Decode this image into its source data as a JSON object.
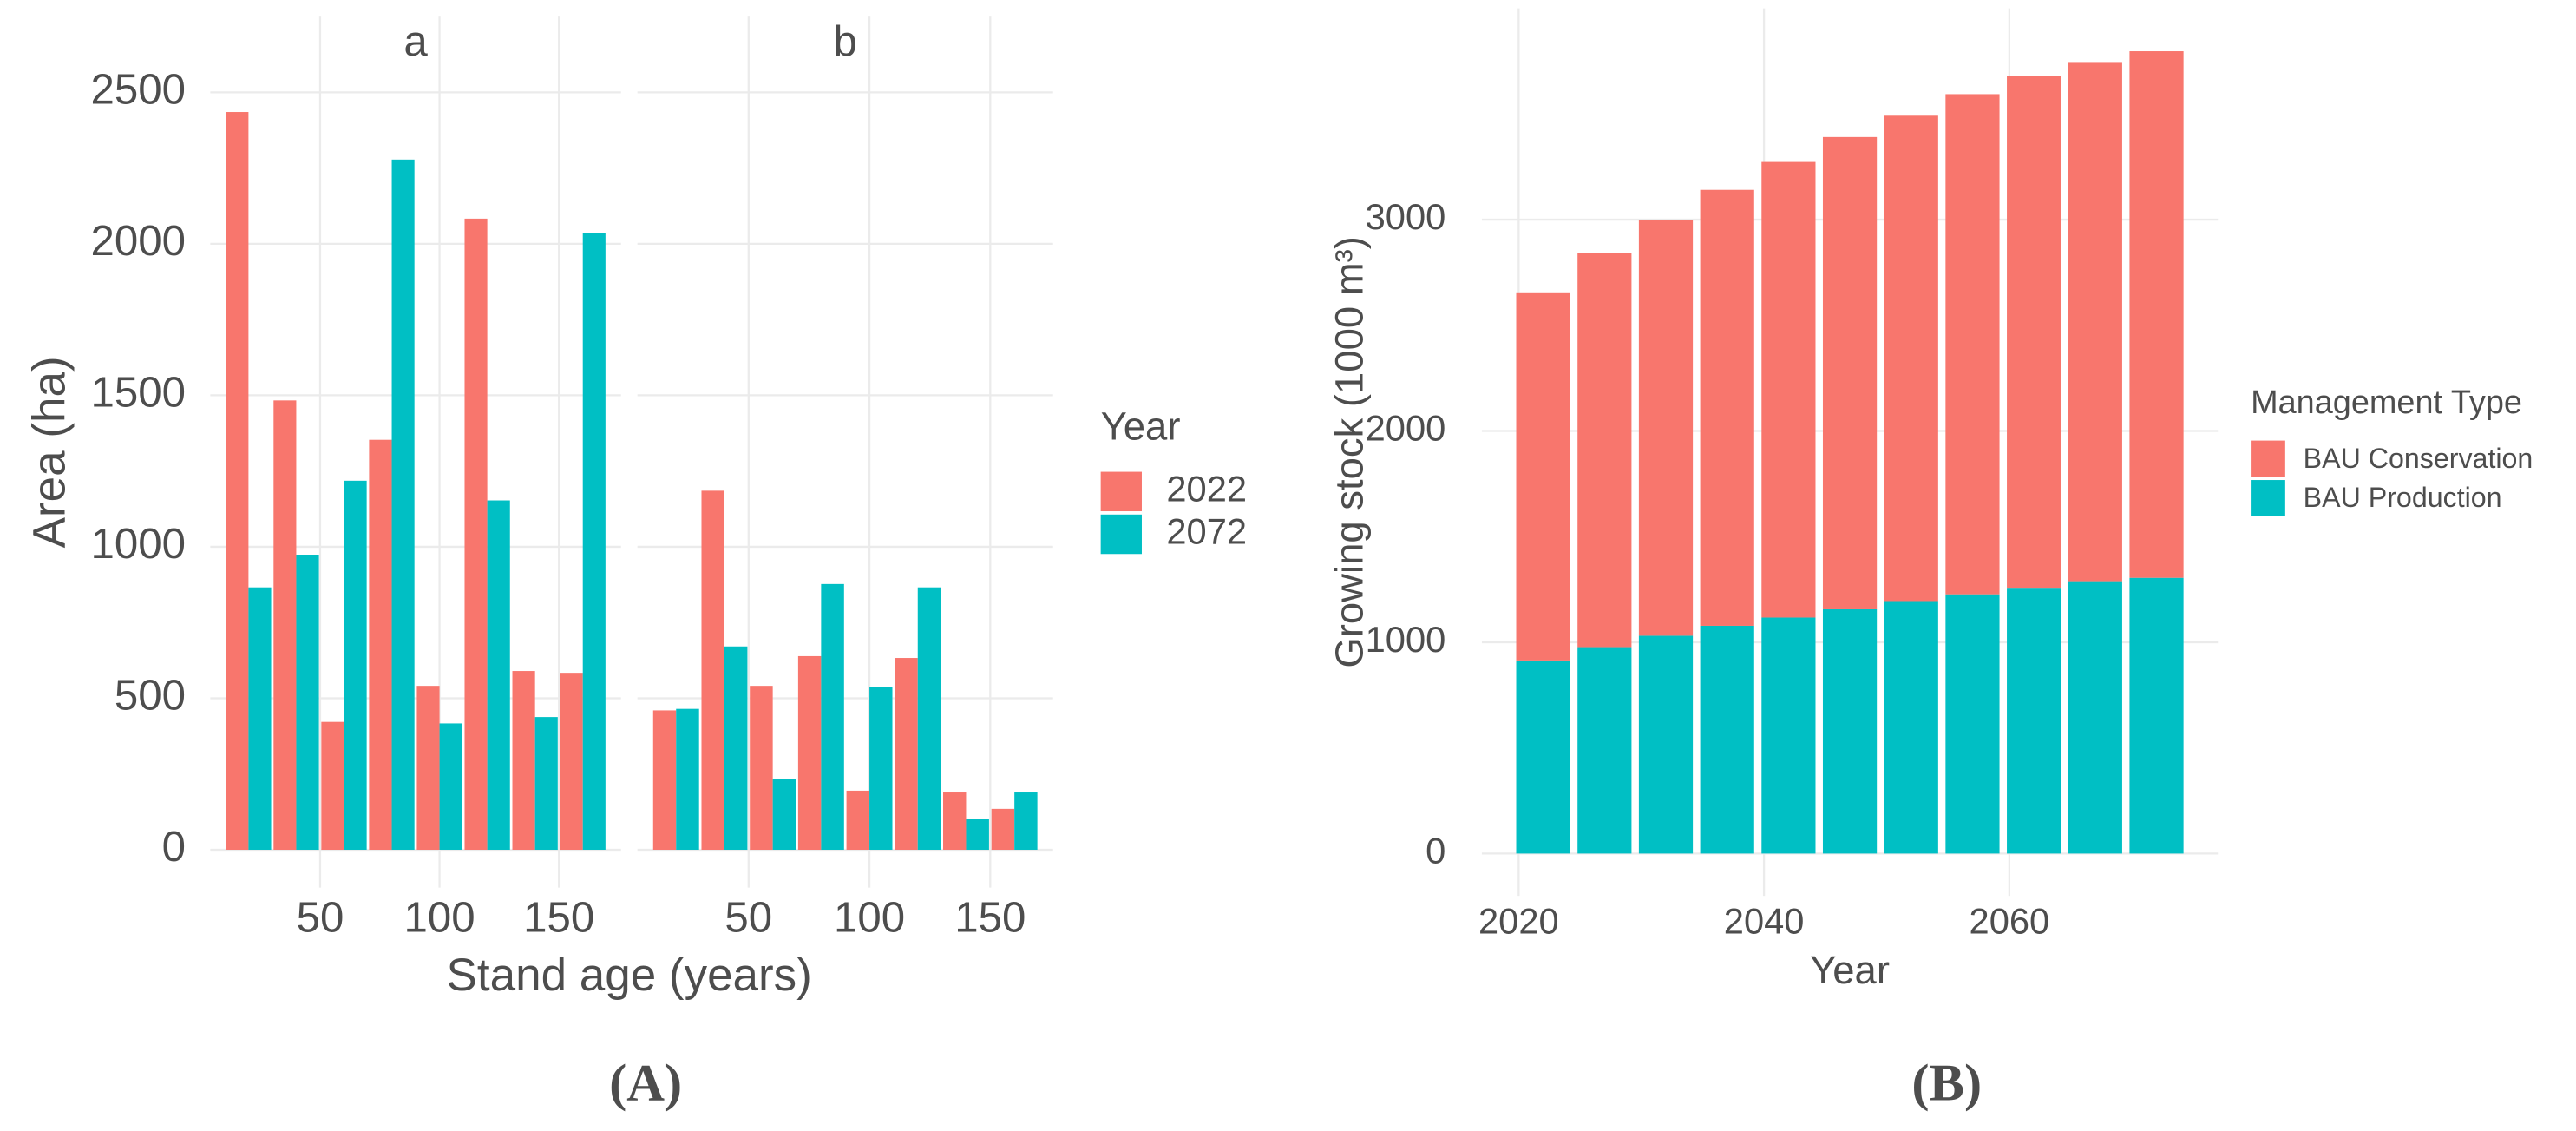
{
  "chart_data": [
    {
      "type": "faceted_bar",
      "caption": "(A)",
      "x_label": "Stand age (years)",
      "y_label": "Area (ha)",
      "legend_title": "Year",
      "series": [
        {
          "name": "2022",
          "color": "#f8766d"
        },
        {
          "name": "2072",
          "color": "#00bfc4"
        }
      ],
      "x": [
        20,
        40,
        60,
        80,
        100,
        120,
        140,
        160
      ],
      "facets": [
        {
          "title": "a",
          "series": [
            {
              "values": [
                2435,
                1483,
                422,
                1353,
                541,
                2083,
                590,
                584
              ]
            },
            {
              "values": [
                866,
                974,
                1218,
                2278,
                417,
                1153,
                438,
                2035
              ]
            }
          ]
        },
        {
          "title": "b",
          "series": [
            {
              "values": [
                460,
                1185,
                541,
                639,
                195,
                633,
                189,
                135
              ]
            },
            {
              "values": [
                465,
                671,
                233,
                877,
                536,
                866,
                103,
                189
              ]
            }
          ]
        }
      ],
      "xlim": [
        4,
        176
      ],
      "xticks": [
        50,
        100,
        150
      ],
      "ylim": [
        -125,
        2750
      ],
      "yticks": [
        0,
        500,
        1000,
        1500,
        2000,
        2500
      ],
      "grid": true
    },
    {
      "type": "stacked_bar",
      "caption": "(B)",
      "x_label": "Year",
      "y_label": "Growing stock (1000 m³)",
      "legend_title": "Management Type",
      "x": [
        2022,
        2027,
        2032,
        2037,
        2042,
        2047,
        2052,
        2057,
        2062,
        2067,
        2072
      ],
      "series": [
        {
          "name": "BAU Conservation",
          "color": "#f8766d",
          "values": [
            1742,
            1867,
            1969,
            2063,
            2156,
            2235,
            2297,
            2367,
            2422,
            2453,
            2492
          ]
        },
        {
          "name": "BAU Production",
          "color": "#00bfc4",
          "values": [
            914,
            977,
            1031,
            1078,
            1117,
            1156,
            1195,
            1227,
            1258,
            1289,
            1305
          ]
        }
      ],
      "xlim": [
        2017,
        2077
      ],
      "xticks": [
        2020,
        2040,
        2060
      ],
      "ylim": [
        -200,
        4000
      ],
      "yticks": [
        0,
        1000,
        2000,
        3000
      ],
      "grid": true
    }
  ]
}
